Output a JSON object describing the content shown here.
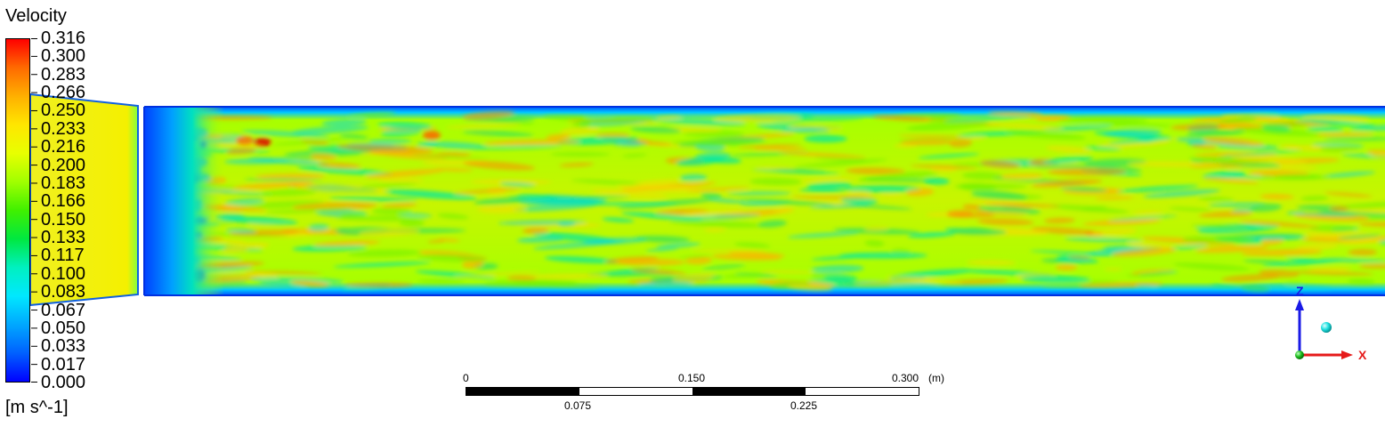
{
  "legend": {
    "title": "Velocity",
    "labels": [
      "0.316",
      "0.300",
      "0.283",
      "0.266",
      "0.250",
      "0.233",
      "0.216",
      "0.200",
      "0.183",
      "0.166",
      "0.150",
      "0.133",
      "0.117",
      "0.100",
      "0.083",
      "0.067",
      "0.050",
      "0.033",
      "0.017",
      "0.000"
    ],
    "unit": "[m s^-1]",
    "colormap": [
      "#ff0000",
      "#ff6a00",
      "#ffb000",
      "#ffe600",
      "#e8ff00",
      "#a0ff00",
      "#40f000",
      "#00e840",
      "#00f0c0",
      "#00e8ff",
      "#00a8ff",
      "#0060ff",
      "#0000ff"
    ]
  },
  "scale": {
    "tick_0": "0",
    "tick_1": "0.075",
    "tick_2": "0.150",
    "tick_3": "0.225",
    "tick_4": "0.300",
    "unit": "(m)"
  },
  "axes": {
    "z_label": "Z",
    "x_label": "X",
    "z_color": "#1a1ae6",
    "x_color": "#e61a1a"
  }
}
